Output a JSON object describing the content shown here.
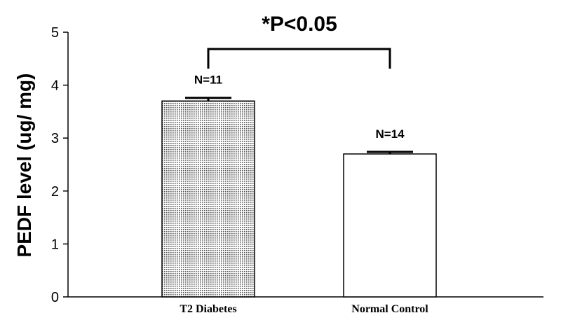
{
  "chart_data": {
    "type": "bar",
    "categories": [
      "T2 Diabetes",
      "Normal Control"
    ],
    "values": [
      3.7,
      2.7
    ],
    "errors": [
      0.06,
      0.04
    ],
    "sample_sizes": [
      "N=11",
      "N=14"
    ],
    "bar_fills": [
      "dotted",
      "white"
    ],
    "ylabel": "PEDF level (ug/ mg)",
    "ylim": [
      0,
      5
    ],
    "yticks": [
      "0",
      "1",
      "2",
      "3",
      "4",
      "5"
    ],
    "significance": {
      "label": "*P<0.05",
      "bracket": [
        "T2 Diabetes",
        "Normal Control"
      ]
    },
    "grid": false,
    "colors": {
      "axis": "#000000",
      "bar_outline": "#000000",
      "dot_fill": "#555555"
    }
  }
}
